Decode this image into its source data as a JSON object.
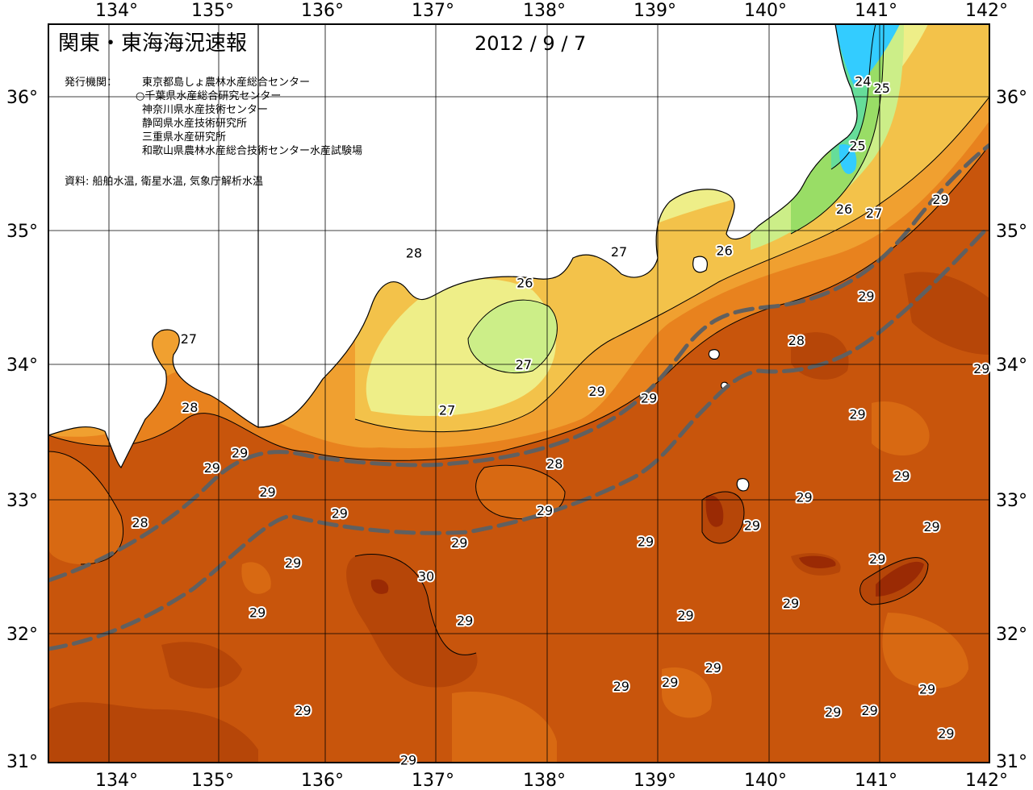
{
  "title": "関東・東海海況速報",
  "date": "2012 / 9 / 7",
  "issuer_label": "発行機関：",
  "issuers": [
    "東京都島しょ農林水産総合センター",
    "○千葉県水産総合研究センター",
    "神奈川県水産技術センター",
    "静岡県水産技術研究所",
    "三重県水産研究所",
    "和歌山県農林水産総合技術センター水産試験場"
  ],
  "source": "資料: 船舶水温, 衛星水温, 気象庁解析水温",
  "axes": {
    "lon_labels": [
      "134°",
      "135°",
      "136°",
      "137°",
      "138°",
      "139°",
      "140°",
      "141°",
      "142°"
    ],
    "lat_labels": [
      "36°",
      "35°",
      "34°",
      "33°",
      "32°",
      "31°"
    ]
  },
  "contour_labels": [
    {
      "lon": 140.8,
      "lat": 36.08,
      "text": "24"
    },
    {
      "lon": 140.97,
      "lat": 36.03,
      "text": "25"
    },
    {
      "lon": 140.75,
      "lat": 35.6,
      "text": "25"
    },
    {
      "lon": 140.63,
      "lat": 35.13,
      "text": "26"
    },
    {
      "lon": 140.9,
      "lat": 35.1,
      "text": "27"
    },
    {
      "lon": 139.55,
      "lat": 34.82,
      "text": "26"
    },
    {
      "lon": 138.6,
      "lat": 34.81,
      "text": "27"
    },
    {
      "lon": 137.75,
      "lat": 34.58,
      "text": "26"
    },
    {
      "lon": 136.75,
      "lat": 34.8,
      "text": "28"
    },
    {
      "lon": 134.72,
      "lat": 34.16,
      "text": "27"
    },
    {
      "lon": 134.73,
      "lat": 33.65,
      "text": "28"
    },
    {
      "lon": 137.74,
      "lat": 33.97,
      "text": "27"
    },
    {
      "lon": 137.05,
      "lat": 33.63,
      "text": "27"
    },
    {
      "lon": 138.4,
      "lat": 33.77,
      "text": "29"
    },
    {
      "lon": 138.87,
      "lat": 33.72,
      "text": "29"
    },
    {
      "lon": 140.2,
      "lat": 34.15,
      "text": "28"
    },
    {
      "lon": 140.83,
      "lat": 34.48,
      "text": "29"
    },
    {
      "lon": 141.5,
      "lat": 35.2,
      "text": "29"
    },
    {
      "lon": 141.87,
      "lat": 33.94,
      "text": "29"
    },
    {
      "lon": 140.75,
      "lat": 33.6,
      "text": "29"
    },
    {
      "lon": 141.15,
      "lat": 33.14,
      "text": "29"
    },
    {
      "lon": 140.27,
      "lat": 32.98,
      "text": "29"
    },
    {
      "lon": 141.42,
      "lat": 32.76,
      "text": "29"
    },
    {
      "lon": 139.8,
      "lat": 32.77,
      "text": "29"
    },
    {
      "lon": 140.93,
      "lat": 32.52,
      "text": "29"
    },
    {
      "lon": 140.15,
      "lat": 32.19,
      "text": "29"
    },
    {
      "lon": 135.18,
      "lat": 33.31,
      "text": "29"
    },
    {
      "lon": 134.93,
      "lat": 33.2,
      "text": "29"
    },
    {
      "lon": 134.28,
      "lat": 32.79,
      "text": "28"
    },
    {
      "lon": 135.43,
      "lat": 33.02,
      "text": "29"
    },
    {
      "lon": 136.08,
      "lat": 32.86,
      "text": "29"
    },
    {
      "lon": 138.02,
      "lat": 33.23,
      "text": "28"
    },
    {
      "lon": 137.93,
      "lat": 32.88,
      "text": "29"
    },
    {
      "lon": 137.16,
      "lat": 32.64,
      "text": "29"
    },
    {
      "lon": 138.84,
      "lat": 32.65,
      "text": "29"
    },
    {
      "lon": 135.66,
      "lat": 32.49,
      "text": "29"
    },
    {
      "lon": 136.86,
      "lat": 32.39,
      "text": "30"
    },
    {
      "lon": 135.34,
      "lat": 32.12,
      "text": "29"
    },
    {
      "lon": 137.21,
      "lat": 32.06,
      "text": "29"
    },
    {
      "lon": 139.2,
      "lat": 32.1,
      "text": "29"
    },
    {
      "lon": 139.45,
      "lat": 31.71,
      "text": "29"
    },
    {
      "lon": 138.62,
      "lat": 31.57,
      "text": "29"
    },
    {
      "lon": 139.06,
      "lat": 31.6,
      "text": "29"
    },
    {
      "lon": 141.38,
      "lat": 31.55,
      "text": "29"
    },
    {
      "lon": 140.53,
      "lat": 31.38,
      "text": "29"
    },
    {
      "lon": 140.86,
      "lat": 31.39,
      "text": "29"
    },
    {
      "lon": 135.75,
      "lat": 31.39,
      "text": "29"
    },
    {
      "lon": 141.55,
      "lat": 31.22,
      "text": "29"
    },
    {
      "lon": 136.7,
      "lat": 31.02,
      "text": "29"
    }
  ],
  "colors": {
    "t_23": "#33ccff",
    "t_24": "#66dd99",
    "t_25": "#99dd66",
    "t_26": "#ccee88",
    "t_265": "#eeee88",
    "t_27": "#f3c24a",
    "t_275": "#f0a030",
    "t_28": "#e8821e",
    "t_285": "#d86912",
    "t_29": "#c8550c",
    "t_295": "#b64608",
    "t_30": "#9a2a04",
    "land": "#ffffff",
    "kuroshio": "#606060"
  }
}
